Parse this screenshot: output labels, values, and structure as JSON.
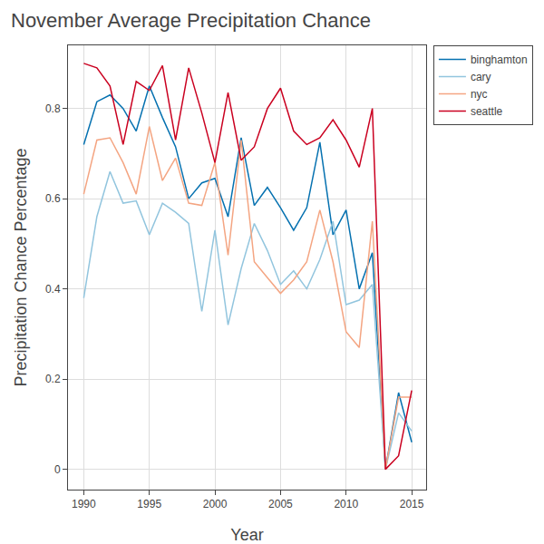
{
  "chart_data": {
    "type": "line",
    "title": "November Average Precipitation Chance",
    "x_label": "Year",
    "y_label": "Precipitation Chance Percentage",
    "x": [
      1990,
      1991,
      1992,
      1993,
      1994,
      1995,
      1996,
      1997,
      1998,
      1999,
      2000,
      2001,
      2002,
      2003,
      2004,
      2005,
      2006,
      2007,
      2008,
      2009,
      2010,
      2011,
      2012,
      2013,
      2014,
      2015
    ],
    "series": [
      {
        "name": "binghamton",
        "color": "#0571b0",
        "values": [
          0.72,
          0.815,
          0.83,
          0.8,
          0.75,
          0.85,
          0.78,
          0.715,
          0.6,
          0.635,
          0.645,
          0.56,
          0.735,
          0.585,
          0.625,
          0.58,
          0.53,
          0.58,
          0.725,
          0.52,
          0.575,
          0.4,
          0.48,
          0.0,
          0.17,
          0.06
        ]
      },
      {
        "name": "cary",
        "color": "#92c5de",
        "values": [
          0.38,
          0.56,
          0.66,
          0.59,
          0.595,
          0.52,
          0.59,
          0.57,
          0.545,
          0.35,
          0.53,
          0.32,
          0.445,
          0.545,
          0.485,
          0.41,
          0.44,
          0.4,
          0.465,
          0.55,
          0.365,
          0.375,
          0.41,
          0.0,
          0.125,
          0.085
        ]
      },
      {
        "name": "nyc",
        "color": "#f4a582",
        "values": [
          0.61,
          0.73,
          0.735,
          0.68,
          0.61,
          0.76,
          0.64,
          0.69,
          0.59,
          0.585,
          0.68,
          0.475,
          0.73,
          0.46,
          0.425,
          0.39,
          0.42,
          0.46,
          0.575,
          0.46,
          0.305,
          0.27,
          0.55,
          0.0,
          0.16,
          0.16
        ]
      },
      {
        "name": "seattle",
        "color": "#ca0020",
        "values": [
          0.9,
          0.89,
          0.85,
          0.72,
          0.86,
          0.84,
          0.895,
          0.73,
          0.89,
          0.79,
          0.68,
          0.835,
          0.685,
          0.715,
          0.8,
          0.845,
          0.75,
          0.72,
          0.735,
          0.775,
          0.73,
          0.67,
          0.8,
          0.0,
          0.03,
          0.175
        ]
      }
    ],
    "xlim": [
      1988.8,
      2016.1
    ],
    "xticks": [
      1990,
      1995,
      2000,
      2005,
      2010,
      2015
    ],
    "ylim": [
      -0.045,
      0.94
    ],
    "yticks": [
      0,
      0.2,
      0.4,
      0.6,
      0.8
    ],
    "grid": true,
    "legend": "top right"
  }
}
